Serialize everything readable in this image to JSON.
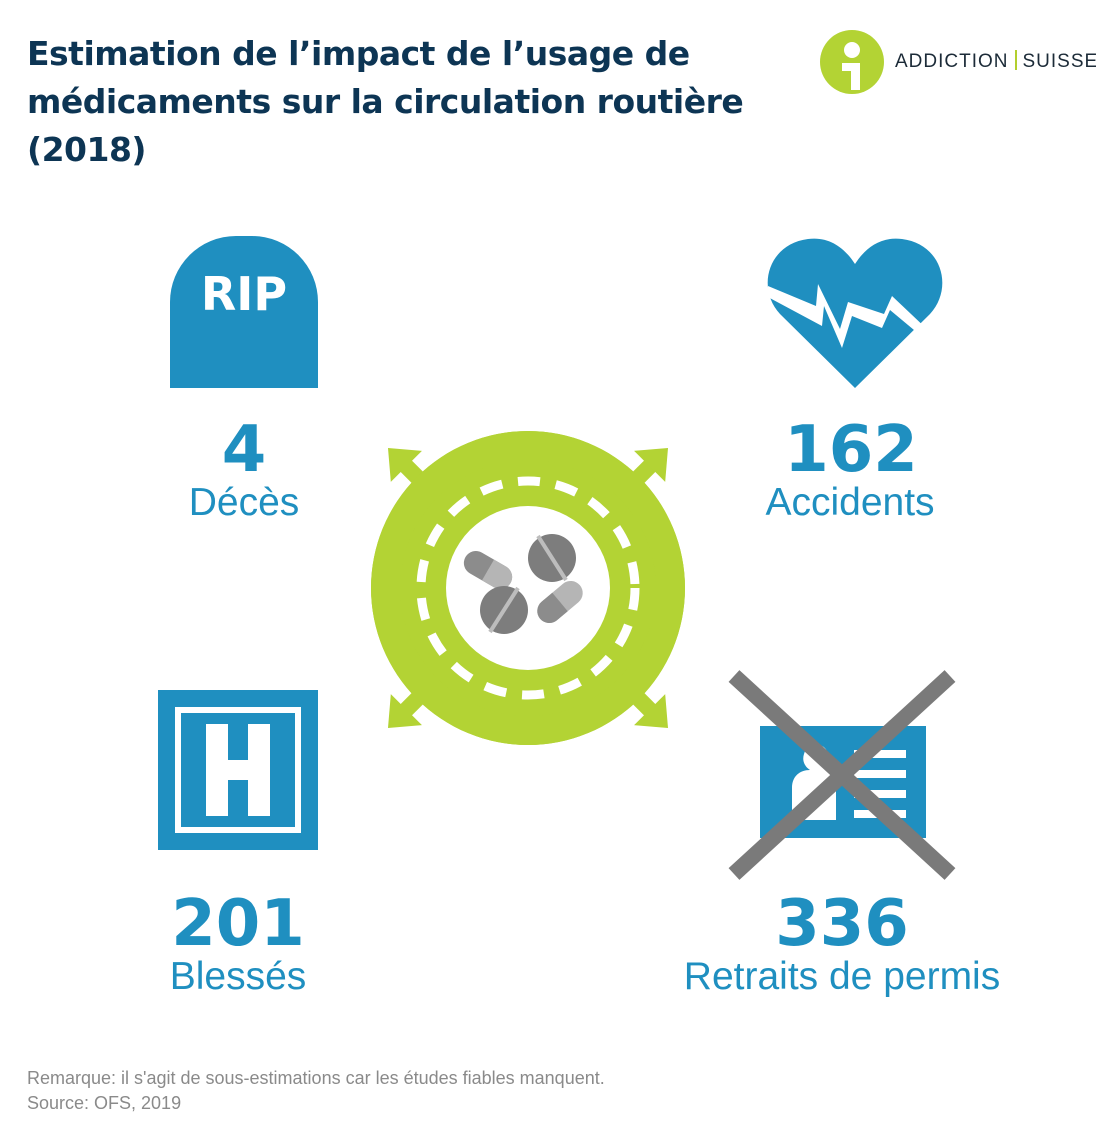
{
  "title": "Estimation de l’impact de l’usage de médicaments sur la circulation routière (2018)",
  "logo": {
    "left": "ADDICTION",
    "right": "SUISSE"
  },
  "colors": {
    "blue": "#1f8fc0",
    "green": "#b3d334",
    "navy": "#0d3554",
    "gray": "#7a7a7a"
  },
  "stats": {
    "deaths": {
      "value": "4",
      "label": "Décès",
      "icon": "tombstone-icon",
      "icon_text": "RIP"
    },
    "accidents": {
      "value": "162",
      "label": "Accidents",
      "icon": "broken-heart-icon"
    },
    "injured": {
      "value": "201",
      "label": "Blessés",
      "icon": "hospital-icon",
      "icon_text": "H"
    },
    "licenses": {
      "value": "336",
      "label": "Retraits de permis",
      "icon": "crossed-license-icon"
    }
  },
  "center_icon": "roundabout-pills-icon",
  "footer": {
    "note": "Remarque: il s'agit de sous-estimations car les études fiables manquent.",
    "source": "Source: OFS, 2019"
  }
}
